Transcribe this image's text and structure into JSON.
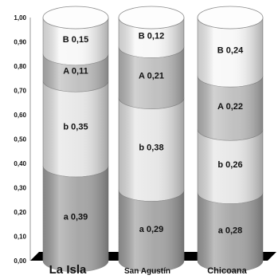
{
  "chart_data": {
    "type": "bar",
    "stacked": true,
    "style": "3d-cylinder",
    "categories": [
      "La Isla",
      "San Agustín",
      "Chicoana"
    ],
    "series": [
      {
        "name": "a",
        "values": [
          0.39,
          0.29,
          0.28
        ],
        "labels": [
          "a 0,39",
          "a 0,29",
          "a 0,28"
        ],
        "color": "#a3a3a3"
      },
      {
        "name": "b",
        "values": [
          0.35,
          0.38,
          0.26
        ],
        "labels": [
          "b 0,35",
          "b 0,38",
          "b 0,26"
        ],
        "color": "#e6e6e6"
      },
      {
        "name": "A",
        "values": [
          0.11,
          0.21,
          0.22
        ],
        "labels": [
          "A 0,11",
          "A 0,21",
          "A 0,22"
        ],
        "color": "#bebebe"
      },
      {
        "name": "B",
        "values": [
          0.15,
          0.12,
          0.24
        ],
        "labels": [
          "B 0,15",
          "B 0,12",
          "B 0,24"
        ],
        "color": "#f7f7f7"
      }
    ],
    "ylim": [
      0,
      1
    ],
    "yticks": [
      "0,00",
      "0,10",
      "0,20",
      "0,30",
      "0,40",
      "0,50",
      "0,60",
      "0,70",
      "0,80",
      "0,90",
      "1,00"
    ],
    "grid": false,
    "legend": "none",
    "title": "",
    "xlabel": "",
    "ylabel": ""
  }
}
